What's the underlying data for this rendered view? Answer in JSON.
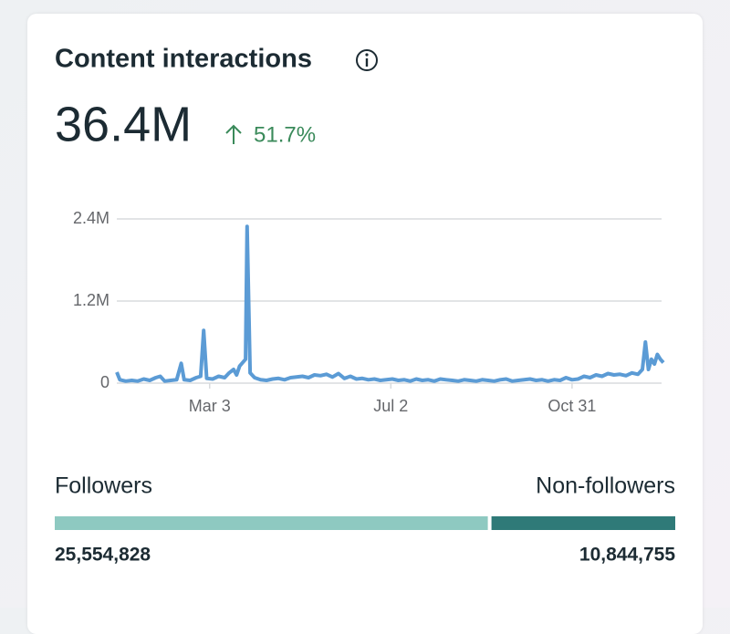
{
  "header": {
    "title": "Content interactions",
    "total": "36.4M",
    "change": "51.7%"
  },
  "chart_data": {
    "type": "line",
    "color": "#5b9bd5",
    "grid": true,
    "x": [
      0,
      2,
      6,
      10,
      14,
      18,
      22,
      26,
      29,
      32,
      36,
      40,
      43,
      45,
      49,
      53,
      56,
      58,
      60,
      64,
      68,
      72,
      75,
      78,
      80,
      82,
      84,
      86,
      87,
      89,
      92,
      96,
      100,
      104,
      108,
      112,
      116,
      120,
      124,
      128,
      132,
      136,
      140,
      144,
      148,
      152,
      156,
      160,
      164,
      168,
      172,
      176,
      180,
      184,
      188,
      192,
      196,
      200,
      204,
      208,
      212,
      216,
      220,
      224,
      228,
      232,
      236,
      240,
      244,
      248,
      252,
      256,
      260,
      264,
      268,
      272,
      276,
      280,
      284,
      288,
      292,
      296,
      300,
      304,
      308,
      312,
      316,
      320,
      324,
      328,
      332,
      336,
      340,
      344,
      348,
      351,
      353,
      355,
      357,
      359,
      361,
      363,
      365
    ],
    "values": [
      160000,
      50000,
      30000,
      40000,
      30000,
      60000,
      40000,
      80000,
      100000,
      30000,
      40000,
      50000,
      290000,
      50000,
      40000,
      80000,
      100000,
      770000,
      70000,
      60000,
      100000,
      80000,
      150000,
      200000,
      120000,
      250000,
      300000,
      350000,
      2290000,
      150000,
      80000,
      50000,
      40000,
      60000,
      70000,
      50000,
      80000,
      90000,
      100000,
      80000,
      120000,
      110000,
      130000,
      90000,
      140000,
      70000,
      100000,
      60000,
      70000,
      50000,
      60000,
      40000,
      50000,
      60000,
      40000,
      50000,
      30000,
      60000,
      40000,
      50000,
      30000,
      60000,
      50000,
      40000,
      30000,
      50000,
      40000,
      30000,
      50000,
      40000,
      30000,
      50000,
      60000,
      30000,
      40000,
      50000,
      60000,
      40000,
      50000,
      30000,
      50000,
      40000,
      80000,
      50000,
      60000,
      100000,
      80000,
      120000,
      100000,
      140000,
      120000,
      130000,
      110000,
      150000,
      130000,
      200000,
      600000,
      200000,
      350000,
      280000,
      420000,
      350000,
      300000
    ],
    "xlim": [
      0,
      365
    ],
    "xticks": [
      {
        "value": 62,
        "label": "Mar 3"
      },
      {
        "value": 183,
        "label": "Jul 2"
      },
      {
        "value": 304,
        "label": "Oct 31"
      }
    ],
    "ylim": [
      0,
      2400000
    ],
    "yticks": [
      0,
      {
        "value": 1200000,
        "label": "1.2M"
      },
      {
        "value": 2400000,
        "label": "2.4M"
      }
    ]
  },
  "breakdown": [
    {
      "name": "Followers",
      "value": 25554828,
      "label": "25,554,828",
      "color": "#8ec9c1"
    },
    {
      "name": "Non-followers",
      "value": 10844755,
      "label": "10,844,755",
      "color": "#2f7a78"
    }
  ]
}
